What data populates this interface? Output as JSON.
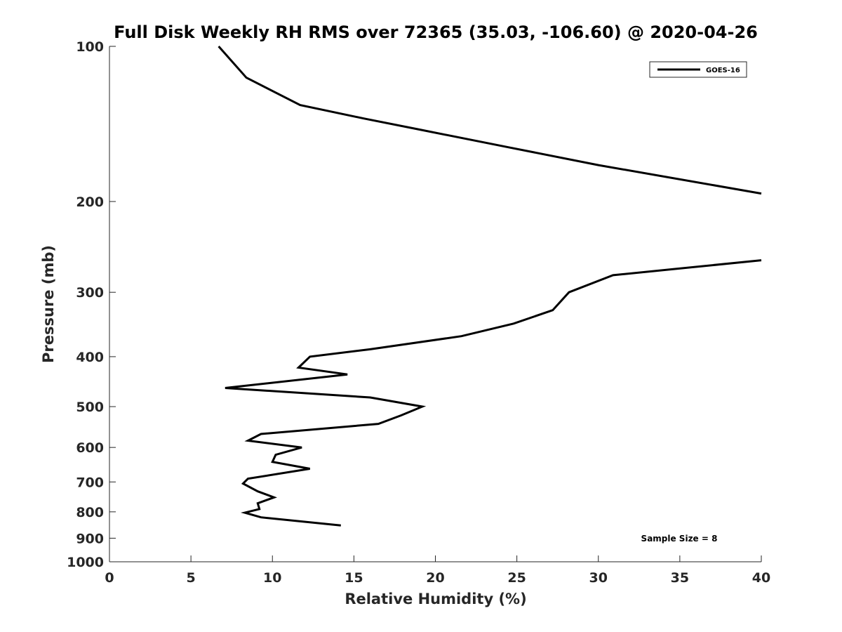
{
  "chart_data": {
    "type": "line",
    "title": "Full Disk Weekly RH RMS over 72365 (35.03, -106.60) @ 2020-04-26",
    "xlabel": "Relative Humidity (%)",
    "ylabel": "Pressure (mb)",
    "xlim": [
      0,
      40
    ],
    "ylim": [
      100,
      1000
    ],
    "y_scale": "log",
    "y_reversed": true,
    "x_ticks": [
      0,
      5,
      10,
      15,
      20,
      25,
      30,
      35,
      40
    ],
    "y_ticks": [
      100,
      200,
      300,
      400,
      500,
      600,
      700,
      800,
      900,
      1000
    ],
    "grid": false,
    "legend_position": "top-right",
    "annotation": "Sample Size = 8",
    "series": [
      {
        "name": "GOES-16",
        "color": "#000000",
        "points": [
          [
            6.7,
            100
          ],
          [
            8.4,
            115
          ],
          [
            11.7,
            130
          ],
          [
            15.6,
            138
          ],
          [
            19.0,
            145
          ],
          [
            24.5,
            157
          ],
          [
            30.0,
            170
          ],
          [
            40.0,
            193
          ],
          null,
          [
            40.0,
            260
          ],
          [
            30.9,
            278
          ],
          [
            28.2,
            300
          ],
          [
            27.2,
            325
          ],
          [
            24.8,
            345
          ],
          [
            21.6,
            365
          ],
          [
            16.0,
            387
          ],
          [
            12.3,
            400
          ],
          [
            11.6,
            420
          ],
          [
            14.6,
            433
          ],
          [
            7.1,
            460
          ],
          [
            16.0,
            480
          ],
          [
            19.2,
            500
          ],
          [
            17.9,
            520
          ],
          [
            16.5,
            540
          ],
          [
            9.3,
            565
          ],
          [
            8.5,
            582
          ],
          [
            11.8,
            600
          ],
          [
            10.2,
            620
          ],
          [
            10.0,
            640
          ],
          [
            12.3,
            660
          ],
          [
            8.5,
            690
          ],
          [
            8.2,
            705
          ],
          [
            9.1,
            730
          ],
          [
            10.1,
            750
          ],
          [
            9.1,
            770
          ],
          [
            9.2,
            790
          ],
          [
            8.3,
            803
          ],
          [
            9.3,
            820
          ],
          [
            14.2,
            850
          ]
        ]
      }
    ]
  }
}
